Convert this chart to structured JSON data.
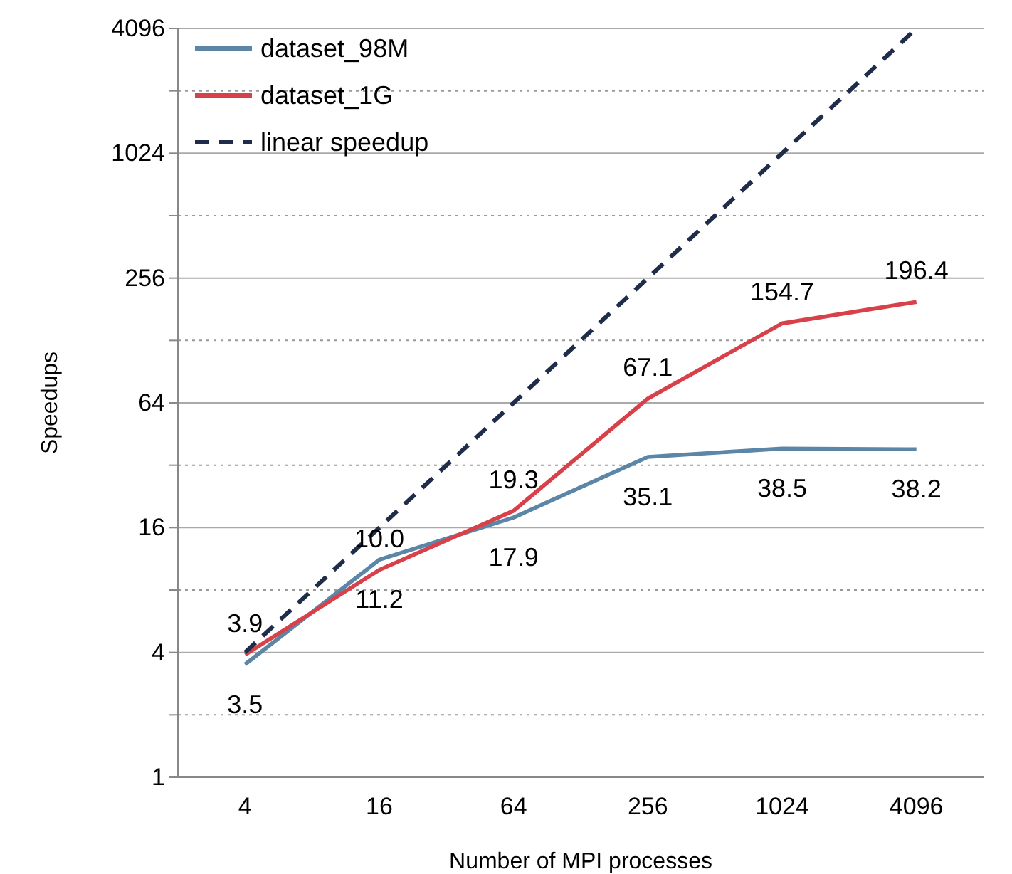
{
  "chart_data": {
    "type": "line",
    "xlabel": "Number of MPI processes",
    "ylabel": "Speedups",
    "categories": [
      "4",
      "16",
      "64",
      "256",
      "1024",
      "4096"
    ],
    "series": [
      {
        "name": "dataset_98M",
        "color": "#5b86a8",
        "values": [
          3.5,
          11.2,
          17.9,
          35.1,
          38.5,
          38.2
        ],
        "value_labels": [
          "3.5",
          "11.2",
          "17.9",
          "35.1",
          "38.5",
          "38.2"
        ]
      },
      {
        "name": "dataset_1G",
        "color": "#d9414a",
        "values": [
          3.9,
          10.0,
          19.3,
          67.1,
          154.7,
          196.4
        ],
        "value_labels": [
          "3.9",
          "10.0",
          "19.3",
          "67.1",
          "154.7",
          "196.4"
        ]
      },
      {
        "name": "linear speedup",
        "color": "#1f2d4a",
        "line_style": "dashed",
        "values": [
          4,
          16,
          64,
          256,
          1024,
          4096
        ]
      }
    ],
    "log": "y",
    "ylim": [
      1,
      4096
    ],
    "yticks": [
      1,
      {
        "value": 2,
        "label": null
      },
      4,
      {
        "value": 8,
        "label": null
      },
      16,
      {
        "value": 32,
        "label": null
      },
      64,
      {
        "value": 128,
        "label": null
      },
      256,
      {
        "value": 512,
        "label": null
      },
      1024,
      {
        "value": 2048,
        "label": null
      },
      4096
    ],
    "grid": "y",
    "legend": "top left",
    "marker": "none",
    "line_style": "solid"
  }
}
